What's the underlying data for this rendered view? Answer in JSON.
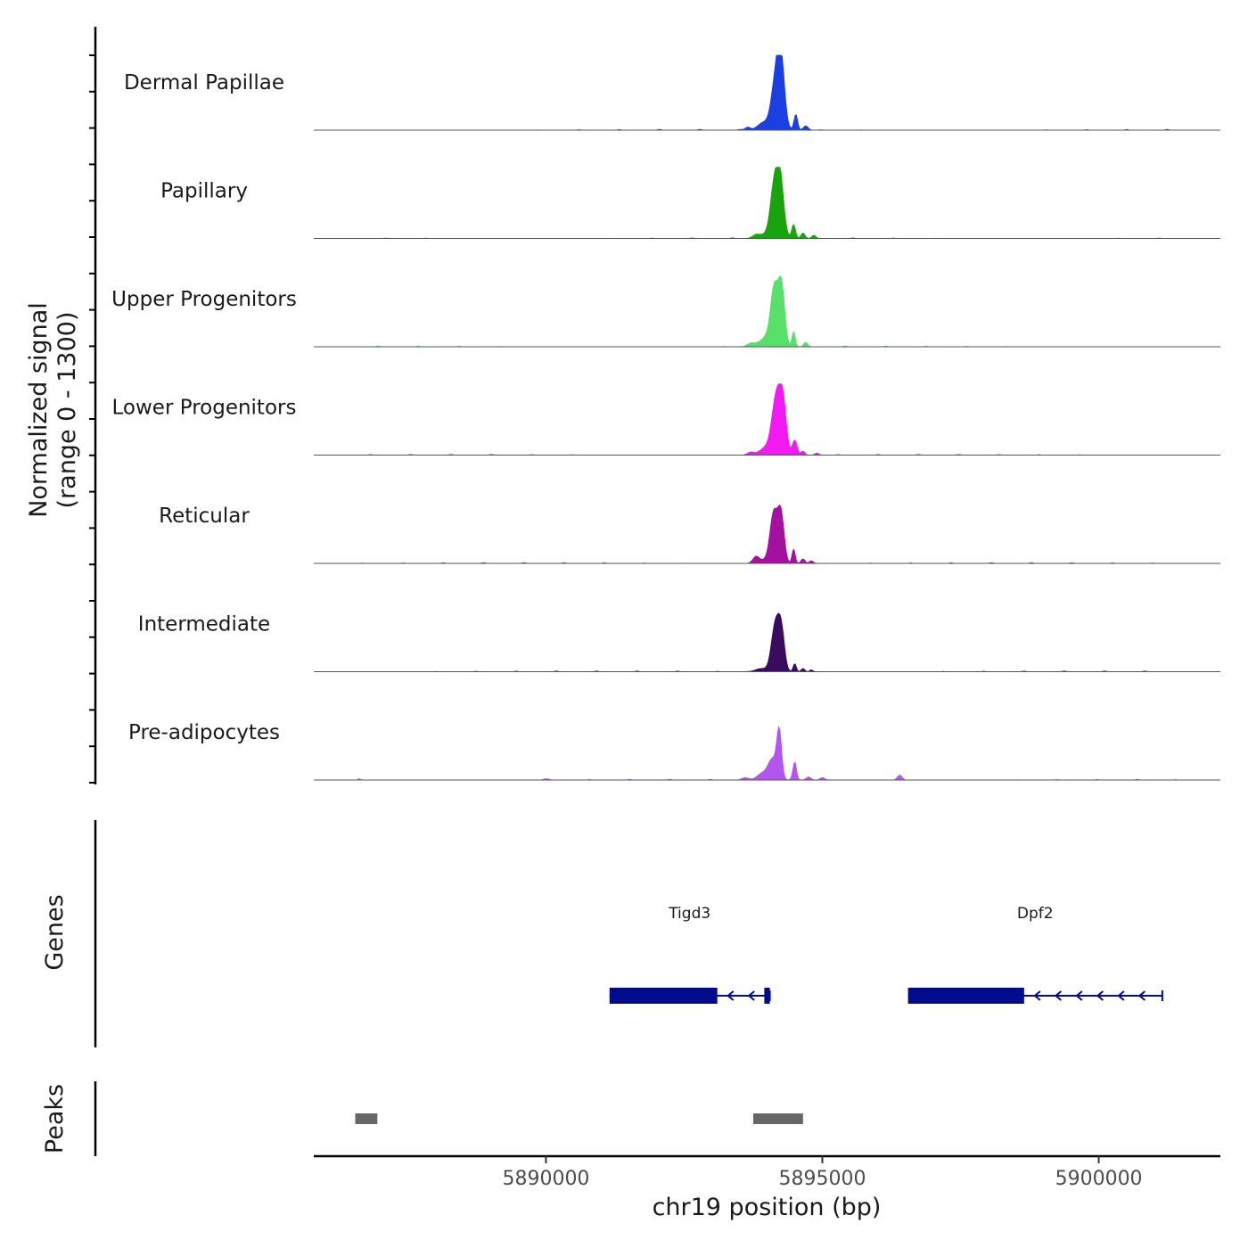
{
  "y_axis_label_line1": "Normalized signal",
  "y_axis_label_line2": "(range 0 - 1300)",
  "genes_label": "Genes",
  "peaks_label": "Peaks",
  "chart_data": {
    "type": "area",
    "xlabel": "chr19 position (bp)",
    "xlim": [
      5885800,
      5902200
    ],
    "x_ticks": [
      5890000,
      5895000,
      5900000
    ],
    "x_tick_labels": [
      "5890000",
      "5895000",
      "5900000"
    ],
    "ylim": [
      0,
      1300
    ],
    "tracks": [
      {
        "name": "Dermal Papillae",
        "color": "#1b3fe0",
        "peak_height": 1.0,
        "bumps": [
          [
            5894150,
            100,
            0.55
          ],
          [
            5894250,
            90,
            0.92
          ],
          [
            5894100,
            220,
            0.12
          ],
          [
            5893900,
            120,
            0.05
          ],
          [
            5894520,
            45,
            0.22
          ],
          [
            5894700,
            60,
            0.06
          ],
          [
            5893650,
            70,
            0.04
          ]
        ]
      },
      {
        "name": "Papillary",
        "color": "#19a40e",
        "peak_height": 0.95,
        "bumps": [
          [
            5894120,
            90,
            0.6
          ],
          [
            5894230,
            90,
            0.9
          ],
          [
            5894100,
            250,
            0.1
          ],
          [
            5894480,
            45,
            0.2
          ],
          [
            5894650,
            50,
            0.08
          ],
          [
            5894850,
            50,
            0.04
          ],
          [
            5893800,
            80,
            0.04
          ]
        ]
      },
      {
        "name": "Upper Progenitors",
        "color": "#58e06a",
        "peak_height": 0.95,
        "bumps": [
          [
            5894130,
            90,
            0.75
          ],
          [
            5894260,
            80,
            0.85
          ],
          [
            5894050,
            230,
            0.16
          ],
          [
            5894480,
            40,
            0.22
          ],
          [
            5894700,
            50,
            0.06
          ],
          [
            5893700,
            90,
            0.04
          ]
        ]
      },
      {
        "name": "Lower Progenitors",
        "color": "#f21af0",
        "peak_height": 0.95,
        "bumps": [
          [
            5894160,
            100,
            0.7
          ],
          [
            5894280,
            90,
            0.8
          ],
          [
            5894050,
            200,
            0.15
          ],
          [
            5894500,
            60,
            0.22
          ],
          [
            5894650,
            45,
            0.06
          ],
          [
            5893700,
            80,
            0.04
          ],
          [
            5894900,
            50,
            0.03
          ]
        ]
      },
      {
        "name": "Reticular",
        "color": "#a4109f",
        "peak_height": 0.92,
        "bumps": [
          [
            5894120,
            90,
            0.7
          ],
          [
            5894250,
            80,
            0.75
          ],
          [
            5893800,
            80,
            0.1
          ],
          [
            5894050,
            180,
            0.08
          ],
          [
            5894480,
            40,
            0.22
          ],
          [
            5894650,
            50,
            0.07
          ],
          [
            5894800,
            50,
            0.04
          ]
        ]
      },
      {
        "name": "Intermediate",
        "color": "#3a0c5e",
        "peak_height": 0.88,
        "bumps": [
          [
            5894150,
            100,
            0.75
          ],
          [
            5894260,
            80,
            0.6
          ],
          [
            5893900,
            150,
            0.05
          ],
          [
            5894500,
            40,
            0.13
          ],
          [
            5894650,
            45,
            0.05
          ],
          [
            5894800,
            40,
            0.03
          ]
        ]
      },
      {
        "name": "Pre-adipocytes",
        "color": "#b356ef",
        "peak_height": 0.85,
        "bumps": [
          [
            5894220,
            60,
            0.75
          ],
          [
            5894100,
            120,
            0.35
          ],
          [
            5893900,
            120,
            0.1
          ],
          [
            5894500,
            45,
            0.3
          ],
          [
            5894750,
            60,
            0.05
          ],
          [
            5895000,
            60,
            0.04
          ],
          [
            5893600,
            80,
            0.04
          ],
          [
            5896400,
            60,
            0.08
          ],
          [
            5890000,
            60,
            0.02
          ],
          [
            5886600,
            60,
            0.02
          ]
        ]
      }
    ],
    "genes": [
      {
        "name": "Tigd3",
        "start": 5891150,
        "end": 5894050,
        "strand": "-",
        "exons": [
          [
            5891150,
            5893100
          ],
          [
            5893950,
            5894050
          ]
        ],
        "color": "#000c8a"
      },
      {
        "name": "Dpf2",
        "start": 5896550,
        "end": 5901150,
        "strand": "-",
        "exons": [
          [
            5896550,
            5898650
          ]
        ],
        "color": "#000c8a"
      }
    ],
    "peaks": [
      {
        "start": 5886550,
        "end": 5886950
      },
      {
        "start": 5893750,
        "end": 5894650
      }
    ]
  }
}
